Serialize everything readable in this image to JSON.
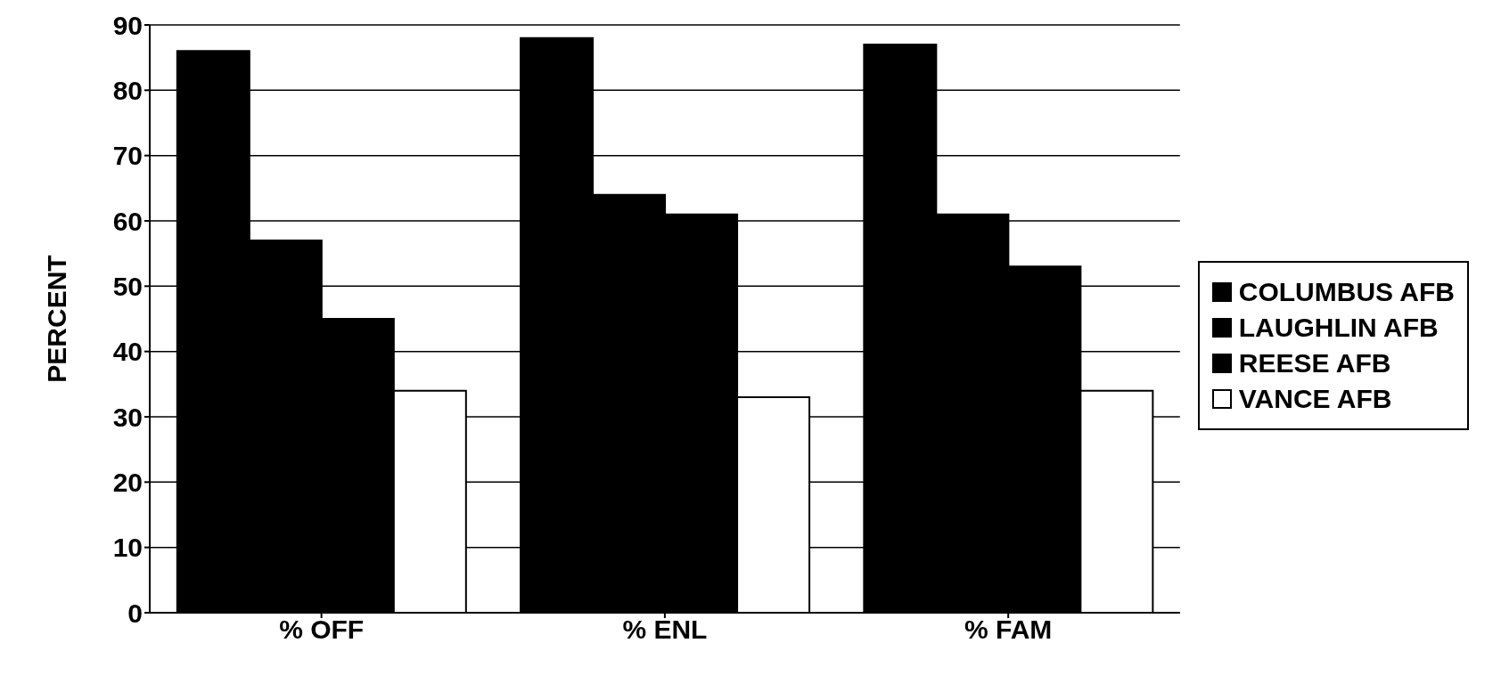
{
  "chart_data": {
    "type": "bar",
    "ylabel": "PERCENT",
    "categories": [
      "% OFF",
      "% ENL",
      "% FAM"
    ],
    "series": [
      {
        "name": "COLUMBUS AFB",
        "color": "#000000",
        "values": [
          86,
          88,
          87
        ]
      },
      {
        "name": "LAUGHLIN AFB",
        "color": "#000000",
        "values": [
          57,
          64,
          61
        ]
      },
      {
        "name": "REESE AFB",
        "color": "#000000",
        "values": [
          45,
          61,
          53
        ]
      },
      {
        "name": "VANCE AFB",
        "color": "#ffffff",
        "values": [
          34,
          33,
          34
        ]
      }
    ],
    "ylim": [
      0,
      90
    ],
    "yticks": [
      0,
      10,
      20,
      30,
      40,
      50,
      60,
      70,
      80,
      90
    ],
    "grid": "y",
    "legend": "right"
  }
}
